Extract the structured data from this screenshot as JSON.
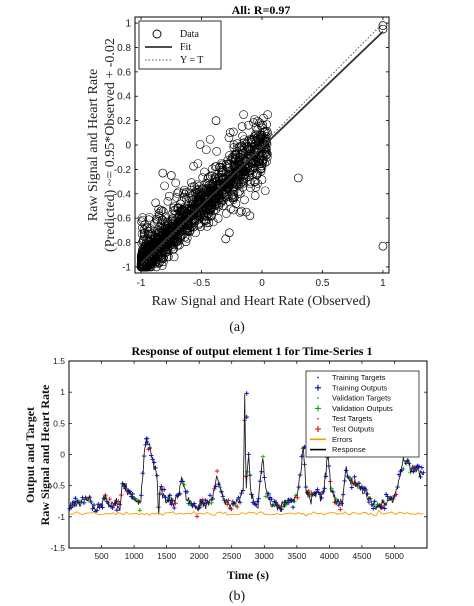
{
  "chart_data": [
    {
      "type": "scatter",
      "title": "All: R=0.97",
      "xlabel": "Raw Signal and Heart Rate (Observed)",
      "ylabel_line1": "Raw Signal and Heart Rate",
      "ylabel_line2": "(Predicted) ~= 0.95*Observed + -0.02",
      "xlim": [
        -1.05,
        1.05
      ],
      "ylim": [
        -1.05,
        1.05
      ],
      "xticks": [
        -1,
        -0.5,
        0,
        0.5,
        1
      ],
      "yticks": [
        -1,
        -0.8,
        -0.6,
        -0.4,
        -0.2,
        0,
        0.2,
        0.4,
        0.6,
        0.8,
        1
      ],
      "legend": [
        {
          "name": "Data",
          "style": "circle"
        },
        {
          "name": "Fit",
          "style": "solid"
        },
        {
          "name": "Y = T",
          "style": "dotted"
        }
      ],
      "fit": {
        "slope": 0.95,
        "intercept": -0.02
      },
      "outliers": [
        [
          -0.1,
          -0.58
        ],
        [
          -0.27,
          -0.72
        ],
        [
          -0.3,
          -0.77
        ],
        [
          0.3,
          -0.27
        ],
        [
          1.0,
          -0.83
        ],
        [
          1.0,
          0.98
        ],
        [
          1.0,
          0.95
        ],
        [
          -0.38,
          0.2
        ],
        [
          -0.62,
          -0.68
        ],
        [
          -0.72,
          -0.73
        ],
        [
          -0.75,
          -0.25
        ],
        [
          -0.82,
          -0.23
        ],
        [
          -0.85,
          -0.58
        ],
        [
          -0.13,
          -0.55
        ],
        [
          0.02,
          0.05
        ]
      ],
      "caption": "(a)"
    },
    {
      "type": "line",
      "title": "Response of output element 1 for Time-Series 1",
      "xlabel": "Time (s)",
      "ylabel_line1": "Output and Target",
      "ylabel_line2": "Raw Signal and Heart Rate",
      "xlim": [
        0,
        5500
      ],
      "ylim": [
        -1.5,
        1.5
      ],
      "xticks": [
        500,
        1000,
        1500,
        2000,
        2500,
        3000,
        3500,
        4000,
        4500,
        5000
      ],
      "yticks": [
        -1.5,
        -1,
        -0.5,
        0,
        0.5,
        1,
        1.5
      ],
      "legend": [
        {
          "name": "Training Targets",
          "color": "#1a1aff",
          "style": "dot"
        },
        {
          "name": "Training Outputs",
          "color": "#0000cc",
          "style": "plus"
        },
        {
          "name": "Validation Targets",
          "color": "#20b020",
          "style": "dot"
        },
        {
          "name": "Validation Outputs",
          "color": "#00aa00",
          "style": "plus"
        },
        {
          "name": "Test Targets",
          "color": "#ff3030",
          "style": "dot"
        },
        {
          "name": "Test Outputs",
          "color": "#ee0000",
          "style": "plus"
        },
        {
          "name": "Errors",
          "color": "#ff9900",
          "style": "line"
        },
        {
          "name": "Response",
          "color": "#000000",
          "style": "line"
        }
      ],
      "response": {
        "x": [
          0,
          100,
          200,
          300,
          400,
          500,
          560,
          600,
          700,
          780,
          820,
          900,
          1000,
          1100,
          1180,
          1230,
          1290,
          1350,
          1380,
          1400,
          1450,
          1500,
          1550,
          1600,
          1700,
          1740,
          1800,
          1900,
          1980,
          2020,
          2100,
          2200,
          2280,
          2340,
          2400,
          2500,
          2600,
          2680,
          2700,
          2720,
          2760,
          2800,
          2900,
          2980,
          3020,
          3100,
          3200,
          3300,
          3400,
          3500,
          3600,
          3640,
          3700,
          3800,
          3900,
          3980,
          4020,
          4100,
          4200,
          4250,
          4300,
          4400,
          4500,
          4600,
          4700,
          4800,
          4900,
          5000,
          5080,
          5150,
          5250,
          5350,
          5450
        ],
        "y": [
          -0.85,
          -0.8,
          -0.75,
          -0.7,
          -0.9,
          -0.75,
          -0.65,
          -0.8,
          -0.78,
          -0.85,
          -0.45,
          -0.6,
          -0.7,
          -0.8,
          0.25,
          0.15,
          -0.1,
          -0.3,
          -0.95,
          -0.5,
          -0.62,
          -0.75,
          -0.7,
          -0.8,
          -0.6,
          -0.35,
          -0.7,
          -0.8,
          -0.9,
          -0.78,
          -0.82,
          -0.7,
          -0.35,
          -0.6,
          -0.78,
          -0.8,
          -0.75,
          -0.55,
          0.98,
          -0.6,
          0.05,
          -0.7,
          -0.8,
          -0.05,
          -0.6,
          -0.75,
          -0.85,
          -0.82,
          -0.75,
          -0.7,
          0.12,
          -0.55,
          -0.7,
          -0.6,
          -0.7,
          0.05,
          -0.55,
          -0.75,
          -0.8,
          -0.2,
          -0.4,
          -0.45,
          -0.55,
          -0.7,
          -0.85,
          -0.8,
          -0.75,
          -0.7,
          -0.35,
          -0.05,
          -0.2,
          -0.25,
          -0.3
        ]
      },
      "caption": "(b)"
    }
  ]
}
